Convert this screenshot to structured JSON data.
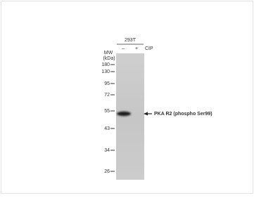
{
  "header": {
    "cell_line": "293T",
    "treatments": [
      "–",
      "+"
    ],
    "treatment_label": "CIP"
  },
  "mw": {
    "label": "MW",
    "unit": "(kDa)",
    "markers": [
      "180",
      "130",
      "95",
      "72",
      "55",
      "43",
      "34",
      "26"
    ]
  },
  "band": {
    "label": "PKA R2 (phospho  Ser99)"
  }
}
